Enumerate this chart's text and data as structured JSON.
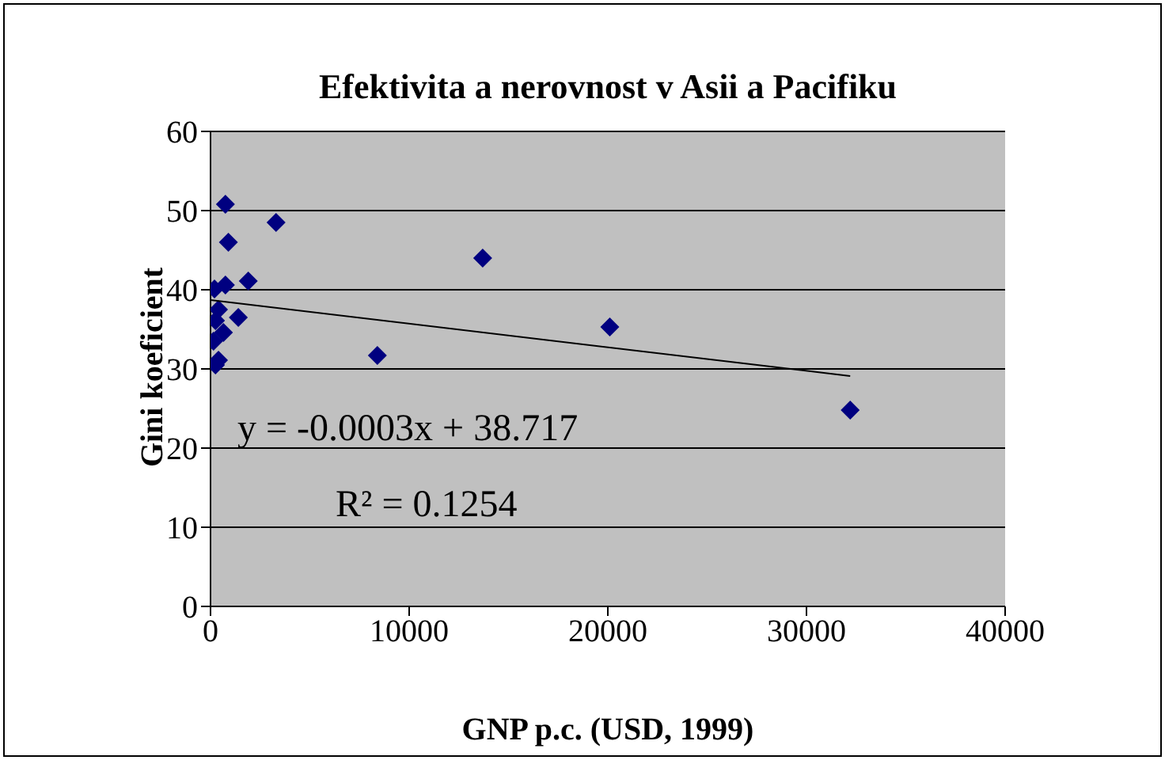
{
  "chart_data": {
    "type": "scatter",
    "title": "Efektivita a nerovnost v Asii a Pacifiku",
    "xlabel": "GNP p.c. (USD, 1999)",
    "ylabel": "Gini koeficient",
    "xlim": [
      0,
      40000
    ],
    "xticks": [
      0,
      10000,
      20000,
      30000,
      40000
    ],
    "ylim": [
      0,
      60
    ],
    "yticks": [
      0,
      10,
      20,
      30,
      40,
      50,
      60
    ],
    "grid": "y",
    "legend": false,
    "marker": "diamond",
    "series": [
      {
        "color": "#000080",
        "x": [
          750,
          3300,
          900,
          13700,
          1900,
          200,
          750,
          20100,
          8400,
          32200,
          1400,
          400,
          250,
          650,
          150,
          400,
          250
        ],
        "values": [
          50.8,
          48.5,
          46,
          44,
          41.1,
          40.1,
          40.6,
          35.3,
          31.7,
          24.8,
          36.5,
          37.5,
          36.1,
          34.6,
          33.5,
          31.1,
          30.5
        ]
      },
      {
        "type": "line",
        "color": "#000000",
        "marker": "none",
        "line_style": "solid",
        "x": [
          0,
          32200
        ],
        "values": [
          38.7,
          29.1
        ]
      }
    ],
    "annotations": [
      "y = -0.0003x + 38.717",
      "R² = 0.1254"
    ]
  }
}
